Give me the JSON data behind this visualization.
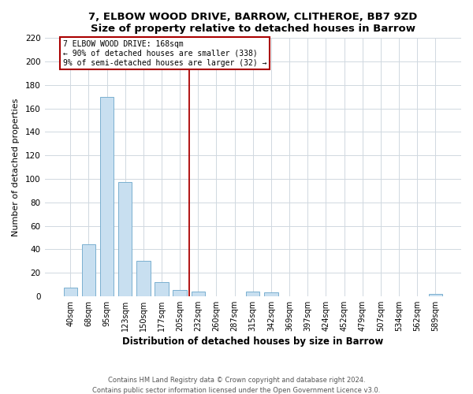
{
  "title": "7, ELBOW WOOD DRIVE, BARROW, CLITHEROE, BB7 9ZD",
  "subtitle": "Size of property relative to detached houses in Barrow",
  "xlabel": "Distribution of detached houses by size in Barrow",
  "ylabel": "Number of detached properties",
  "bar_labels": [
    "40sqm",
    "68sqm",
    "95sqm",
    "123sqm",
    "150sqm",
    "177sqm",
    "205sqm",
    "232sqm",
    "260sqm",
    "287sqm",
    "315sqm",
    "342sqm",
    "369sqm",
    "397sqm",
    "424sqm",
    "452sqm",
    "479sqm",
    "507sqm",
    "534sqm",
    "562sqm",
    "589sqm"
  ],
  "bar_values": [
    7,
    44,
    170,
    97,
    30,
    12,
    5,
    4,
    0,
    0,
    4,
    3,
    0,
    0,
    0,
    0,
    0,
    0,
    0,
    0,
    2
  ],
  "bar_color": "#c8dff0",
  "bar_edge_color": "#7ab0d0",
  "property_line_x": 6.5,
  "annotation_text_line1": "7 ELBOW WOOD DRIVE: 168sqm",
  "annotation_text_line2": "← 90% of detached houses are smaller (338)",
  "annotation_text_line3": "9% of semi-detached houses are larger (32) →",
  "annotation_box_color": "#ffffff",
  "annotation_box_edge_color": "#aa0000",
  "vline_color": "#aa0000",
  "ylim": [
    0,
    220
  ],
  "yticks": [
    0,
    20,
    40,
    60,
    80,
    100,
    120,
    140,
    160,
    180,
    200,
    220
  ],
  "footer_line1": "Contains HM Land Registry data © Crown copyright and database right 2024.",
  "footer_line2": "Contains public sector information licensed under the Open Government Licence v3.0.",
  "background_color": "#ffffff",
  "plot_background_color": "#ffffff",
  "grid_color": "#d0d8e0"
}
